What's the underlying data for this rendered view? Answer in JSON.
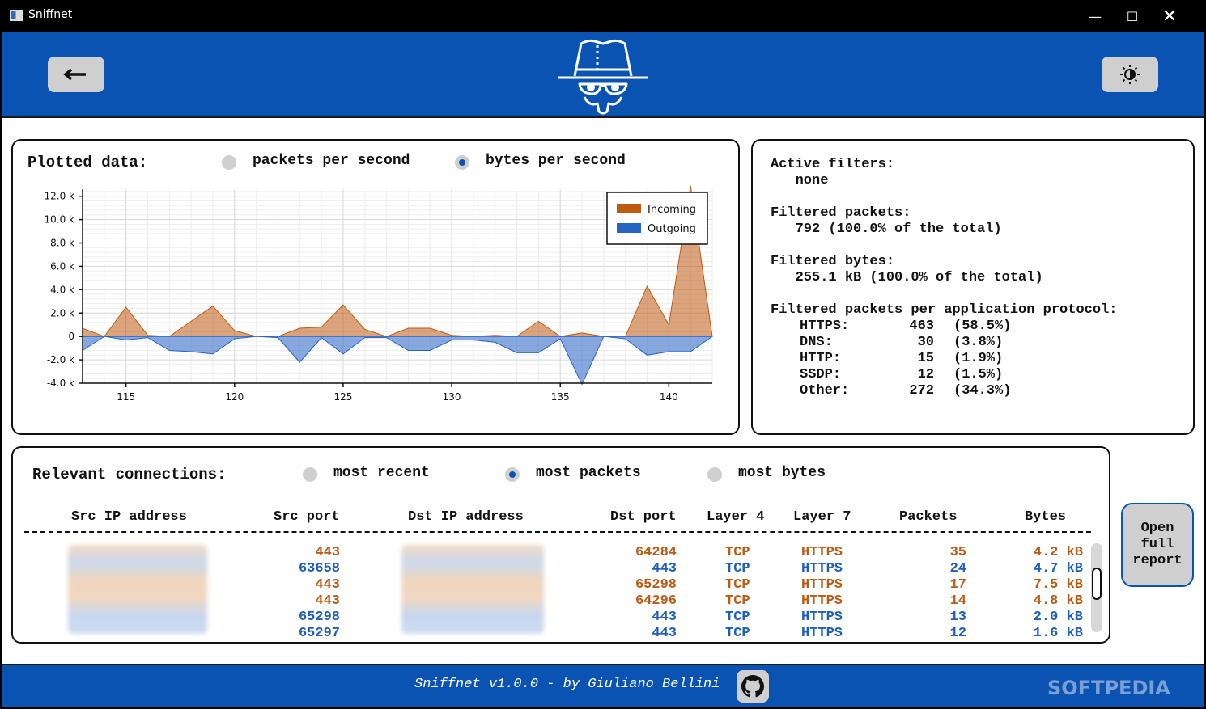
{
  "window": {
    "title": "Sniffnet"
  },
  "chart_panel": {
    "plotted_label": "Plotted data:",
    "options": [
      {
        "label": "packets per second",
        "selected": false
      },
      {
        "label": "bytes per second",
        "selected": true
      }
    ]
  },
  "chart_data": {
    "type": "area",
    "x": [
      113,
      114,
      115,
      116,
      117,
      118,
      119,
      120,
      121,
      122,
      123,
      124,
      125,
      126,
      127,
      128,
      129,
      130,
      131,
      132,
      133,
      134,
      135,
      136,
      137,
      138,
      139,
      140,
      141,
      142
    ],
    "series": [
      {
        "name": "Incoming",
        "color": "#c05a10",
        "values": [
          700,
          0,
          2500,
          100,
          0,
          1300,
          2600,
          500,
          0,
          0,
          700,
          800,
          2700,
          600,
          0,
          700,
          700,
          100,
          0,
          100,
          0,
          1300,
          0,
          300,
          0,
          0,
          4300,
          1000,
          12900,
          0
        ]
      },
      {
        "name": "Outgoing",
        "color": "#2563c7",
        "values": [
          -1200,
          0,
          -300,
          -100,
          -1200,
          -1300,
          -1500,
          -200,
          0,
          -100,
          -2200,
          -100,
          -1500,
          -100,
          -100,
          -1200,
          -1200,
          -300,
          -300,
          -500,
          -1400,
          -1400,
          -200,
          -4100,
          0,
          -200,
          -1600,
          -1300,
          -1300,
          0
        ]
      }
    ],
    "yticks": [
      "12.0 k",
      "10.0 k",
      "8.0 k",
      "6.0 k",
      "4.0 k",
      "2.0 k",
      "0",
      "-2.0 k",
      "-4.0 k"
    ],
    "ytick_values": [
      12000,
      10000,
      8000,
      6000,
      4000,
      2000,
      0,
      -2000,
      -4000
    ],
    "xticks": [
      115,
      120,
      125,
      130,
      135,
      140
    ],
    "xlim": [
      113,
      142
    ],
    "ylim": [
      -4000,
      12600
    ],
    "legend_position": "top-right",
    "grid": true
  },
  "stats": {
    "active_filters_label": "Active filters:",
    "active_filters_value": "none",
    "filtered_packets_label": "Filtered packets:",
    "filtered_packets_value": "792 (100.0% of the total)",
    "filtered_bytes_label": "Filtered bytes:",
    "filtered_bytes_value": "255.1 kB (100.0% of the total)",
    "protocols_label": "Filtered packets per application protocol:",
    "protocols": [
      {
        "name": "HTTPS:",
        "count": "463",
        "pct": "(58.5%)"
      },
      {
        "name": "DNS:",
        "count": "30",
        "pct": "(3.8%)"
      },
      {
        "name": "HTTP:",
        "count": "15",
        "pct": "(1.9%)"
      },
      {
        "name": "SSDP:",
        "count": "12",
        "pct": "(1.5%)"
      },
      {
        "name": "Other:",
        "count": "272",
        "pct": "(34.3%)"
      }
    ]
  },
  "connections": {
    "label": "Relevant connections:",
    "options": [
      {
        "label": "most recent",
        "selected": false
      },
      {
        "label": "most packets",
        "selected": true
      },
      {
        "label": "most bytes",
        "selected": false
      }
    ],
    "columns": [
      "Src IP address",
      "Src port",
      "Dst IP address",
      "Dst port",
      "Layer 4",
      "Layer 7",
      "Packets",
      "Bytes"
    ],
    "rows": [
      {
        "src_port": "443",
        "dst_port": "64284",
        "l4": "TCP",
        "l7": "HTTPS",
        "packets": "35",
        "bytes": "4.2 kB",
        "dir": "in"
      },
      {
        "src_port": "63658",
        "dst_port": "443",
        "l4": "TCP",
        "l7": "HTTPS",
        "packets": "24",
        "bytes": "4.7 kB",
        "dir": "out"
      },
      {
        "src_port": "443",
        "dst_port": "65298",
        "l4": "TCP",
        "l7": "HTTPS",
        "packets": "17",
        "bytes": "7.5 kB",
        "dir": "in"
      },
      {
        "src_port": "443",
        "dst_port": "64296",
        "l4": "TCP",
        "l7": "HTTPS",
        "packets": "14",
        "bytes": "4.8 kB",
        "dir": "in"
      },
      {
        "src_port": "65298",
        "dst_port": "443",
        "l4": "TCP",
        "l7": "HTTPS",
        "packets": "13",
        "bytes": "2.0 kB",
        "dir": "out"
      },
      {
        "src_port": "65297",
        "dst_port": "443",
        "l4": "TCP",
        "l7": "HTTPS",
        "packets": "12",
        "bytes": "1.6 kB",
        "dir": "out"
      }
    ],
    "colors": {
      "in": "#b85c16",
      "out": "#1f5fb8"
    }
  },
  "report_button": {
    "label": "Open full report"
  },
  "footer": {
    "text": "Sniffnet v1.0.0 - by Giuliano Bellini",
    "watermark": "SOFTPEDIA"
  }
}
